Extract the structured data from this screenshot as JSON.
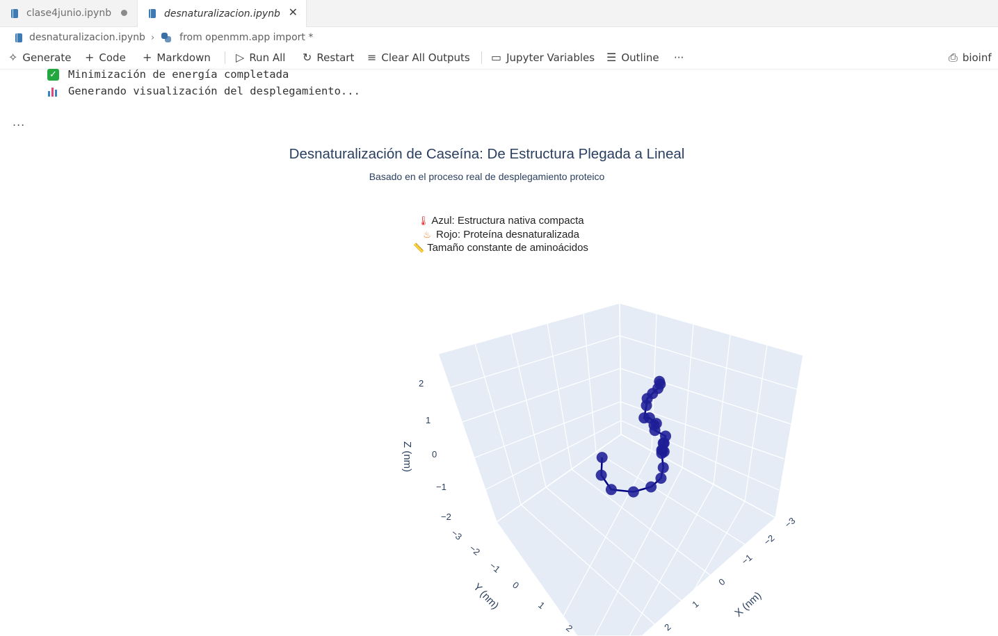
{
  "tabs": [
    {
      "label": "clase4junio.ipynb",
      "modified": true
    },
    {
      "label": "desnaturalizacion.ipynb",
      "active": true
    }
  ],
  "breadcrumb": {
    "file": "desnaturalizacion.ipynb",
    "cell": "from openmm.app import *"
  },
  "toolbar": {
    "generate": "Generate",
    "code": "Code",
    "markdown": "Markdown",
    "run_all": "Run All",
    "restart": "Restart",
    "clear_all_outputs": "Clear All Outputs",
    "jupyter_variables": "Jupyter Variables",
    "outline": "Outline",
    "more": "···",
    "kernel": "bioinf"
  },
  "output": {
    "line1": "Minimización de energía completada",
    "line2": "Generando visualización del desplegamiento...",
    "ellipsis": "..."
  },
  "chart_data": {
    "type": "scatter3d",
    "title": "Desnaturalización de Caseína: De Estructura Plegada a Lineal",
    "subtitle": "Basado en el proceso real de desplegamiento proteico",
    "legend_lines": [
      {
        "icon": "thermometer-icon",
        "text": "Azul: Estructura nativa compacta"
      },
      {
        "icon": "fire-icon",
        "text": "Rojo: Proteína desnaturalizada"
      },
      {
        "icon": "ruler-icon",
        "text": "Tamaño constante de aminoácidos"
      }
    ],
    "axes": {
      "x": {
        "label": "X (nm)",
        "ticks": [
          "−3",
          "−2",
          "−1",
          "0",
          "1",
          "2"
        ]
      },
      "y": {
        "label": "Y (nm)",
        "ticks": [
          "−3",
          "−2",
          "−1",
          "0",
          "1",
          "2"
        ]
      },
      "z": {
        "label": "Z (nm)",
        "ticks": [
          "−2",
          "−1",
          "0",
          "1",
          "2"
        ]
      }
    },
    "series": [
      {
        "marker_color": "#1e1e96",
        "line_color": "#000080",
        "points": [
          [
            -0.6,
            -2.8,
            0.3
          ],
          [
            -0.5,
            -2.7,
            0.35
          ],
          [
            -0.4,
            -2.5,
            0.4
          ],
          [
            -0.3,
            -2.2,
            0.5
          ],
          [
            -0.2,
            -1.9,
            0.6
          ],
          [
            0.1,
            -1.5,
            0.9
          ],
          [
            0.2,
            -1.3,
            0.5
          ],
          [
            0.5,
            -1.1,
            1.0
          ],
          [
            0.6,
            -1.2,
            0.7
          ],
          [
            0.7,
            -1.0,
            0.9
          ],
          [
            0.8,
            -0.9,
            0.8
          ],
          [
            1.0,
            -1.0,
            0.6
          ],
          [
            1.1,
            -0.8,
            0.5
          ],
          [
            1.2,
            -0.7,
            0.7
          ],
          [
            1.3,
            -0.5,
            0.6
          ],
          [
            1.4,
            -0.4,
            0.8
          ],
          [
            1.6,
            -0.2,
            1.1
          ],
          [
            1.7,
            0.0,
            1.3
          ],
          [
            1.9,
            0.2,
            0.9
          ],
          [
            2.0,
            0.4,
            0.6
          ],
          [
            1.9,
            0.6,
            0.2
          ],
          [
            1.6,
            0.8,
            -0.2
          ],
          [
            1.1,
            0.9,
            -0.5
          ],
          [
            0.6,
            0.6,
            -0.5
          ],
          [
            0.3,
            0.2,
            -0.2
          ]
        ]
      }
    ]
  }
}
